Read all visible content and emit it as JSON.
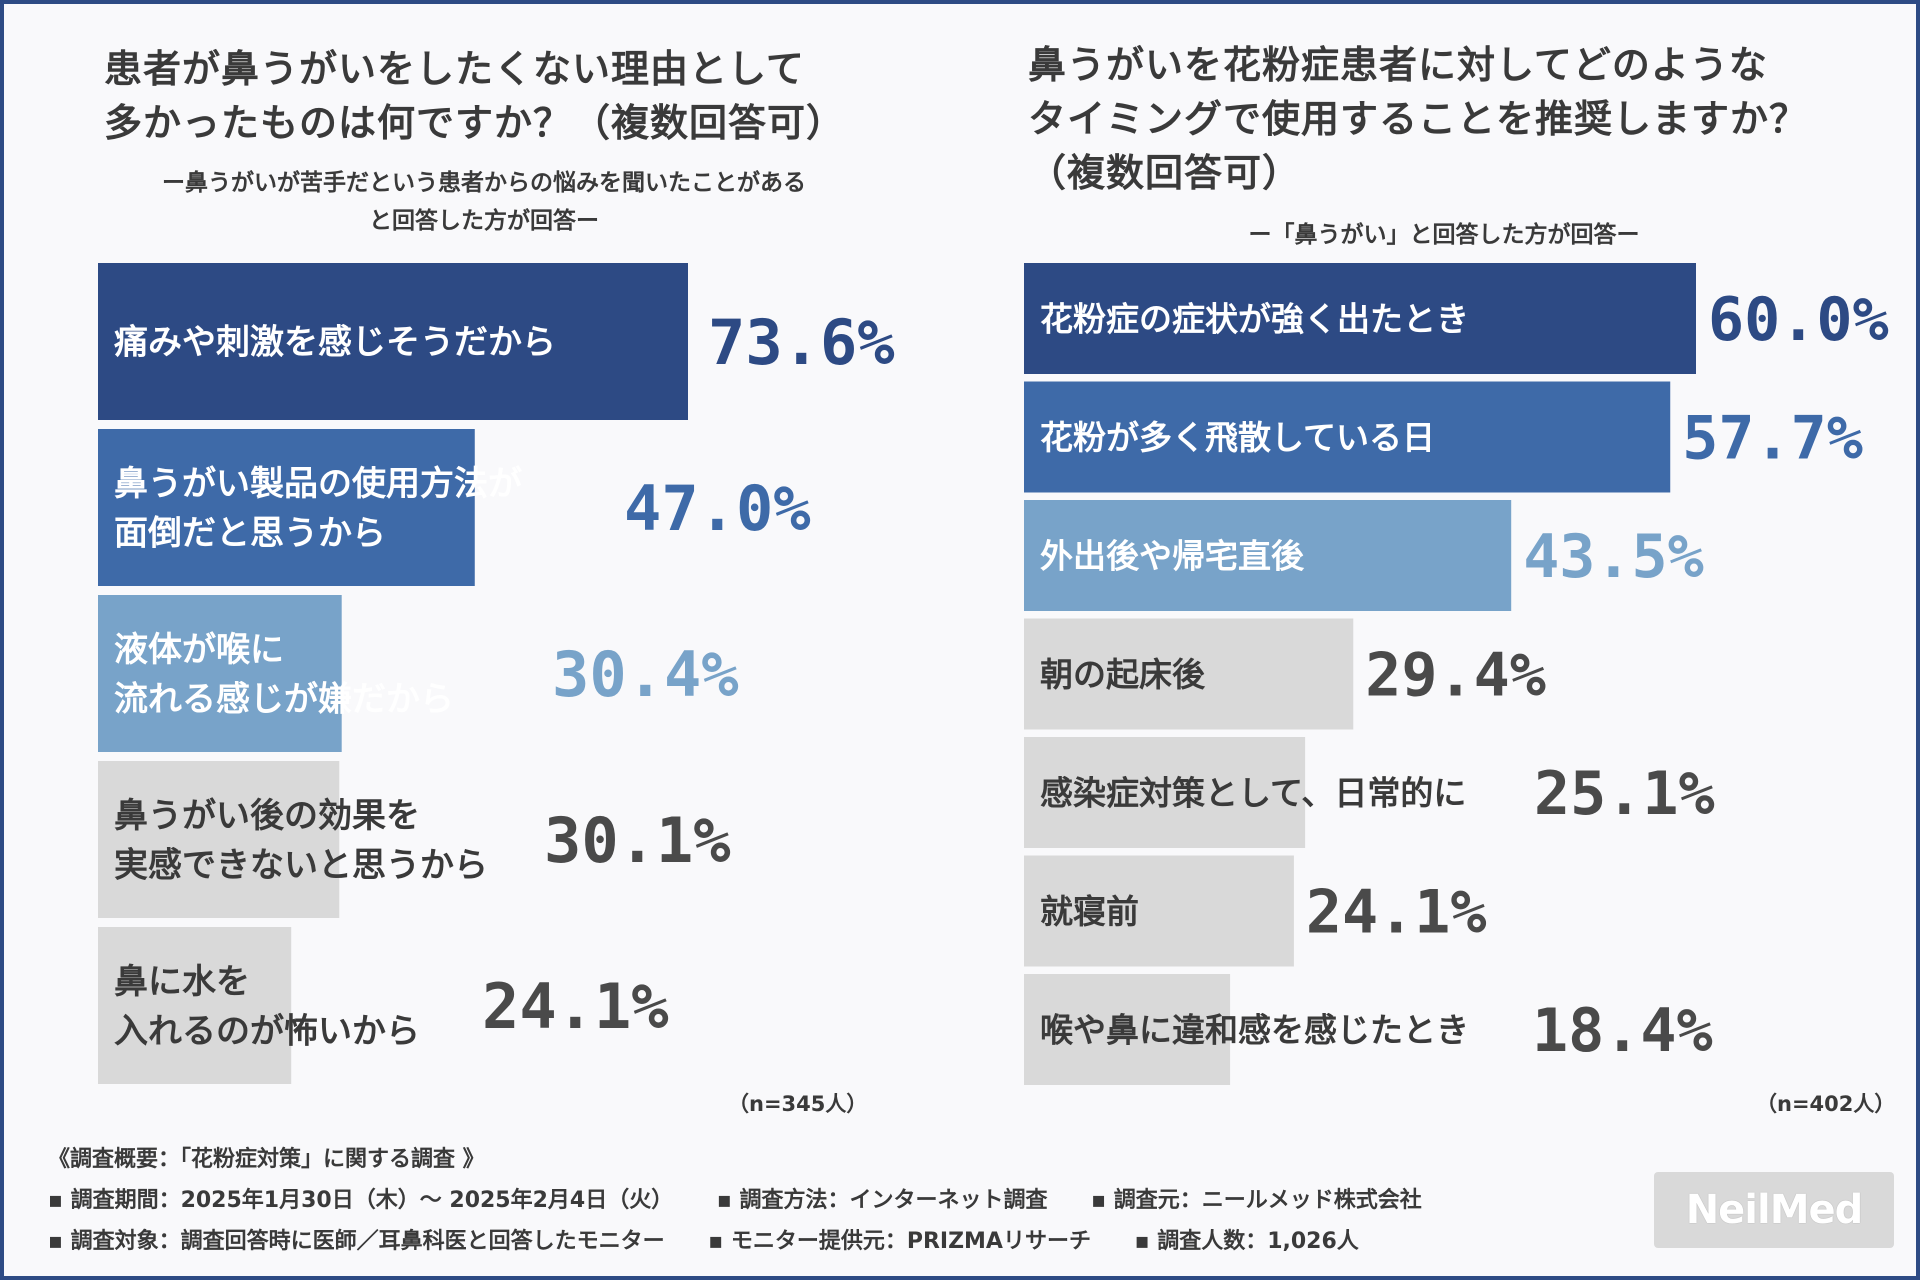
{
  "chart_data": [
    {
      "type": "bar",
      "orientation": "horizontal",
      "title_lines": [
        "患者が鼻うがいをしたくない理由として",
        "多かったものは何ですか？（複数回答可）"
      ],
      "subtitle_lines": [
        "ー鼻うがいが苦手だという患者からの悩みを聞いたことがある",
        "と回答した方が回答ー"
      ],
      "categories": [
        [
          "痛みや刺激を感じそうだから"
        ],
        [
          "鼻うがい製品の使用方法が",
          "面倒だと思うから"
        ],
        [
          "液体が喉に",
          "流れる感じが嫌だから"
        ],
        [
          "鼻うがい後の効果を",
          "実感できないと思うから"
        ],
        [
          "鼻に水を",
          "入れるのが怖いから"
        ]
      ],
      "values": [
        73.6,
        47.0,
        30.4,
        30.1,
        24.1
      ],
      "value_labels": [
        "73.6%",
        "47.0%",
        "30.4%",
        "30.1%",
        "24.1%"
      ],
      "xlim": [
        0,
        100
      ],
      "note": "（n=345人）"
    },
    {
      "type": "bar",
      "orientation": "horizontal",
      "title_lines": [
        "鼻うがいを花粉症患者に対してどのような",
        "タイミングで使用することを推奨しますか？",
        "（複数回答可）"
      ],
      "subtitle_lines": [
        "ー「鼻うがい」と回答した方が回答ー"
      ],
      "categories": [
        [
          "花粉症の症状が強く出たとき"
        ],
        [
          "花粉が多く飛散している日"
        ],
        [
          "外出後や帰宅直後"
        ],
        [
          "朝の起床後"
        ],
        [
          "感染症対策として、日常的に"
        ],
        [
          "就寝前"
        ],
        [
          "喉や鼻に違和感を感じたとき"
        ]
      ],
      "values": [
        60.0,
        57.7,
        43.5,
        29.4,
        25.1,
        24.1,
        18.4
      ],
      "value_labels": [
        "60.0%",
        "57.7%",
        "43.5%",
        "29.4%",
        "25.1%",
        "24.1%",
        "18.4%"
      ],
      "xlim": [
        0,
        100
      ],
      "note": "（n=402人）"
    }
  ],
  "colors": {
    "bar_1": "#2d4a84",
    "bar_2": "#3e6aa8",
    "bar_3": "#78a3c9",
    "bar_other": "#d9d9d9",
    "label_dark_bg": "#ffffff",
    "label_light_bg": "#3a3a3a",
    "value_other": "#4a4a4a"
  },
  "footer": {
    "heading": "《調査概要：「花粉症対策」に関する調査 》",
    "line1": [
      "▪ 調査期間：2025年1月30日（木）～ 2025年2月4日（火）",
      "▪ 調査方法：インターネット調査",
      "▪ 調査元：ニールメッド株式会社"
    ],
    "line2": [
      "▪ 調査対象：調査回答時に医師／耳鼻科医と回答したモニター",
      "▪ モニター提供元：PRIZMAリサーチ",
      "▪ 調査人数：1,026人"
    ],
    "logo_text": "NeilMed"
  }
}
